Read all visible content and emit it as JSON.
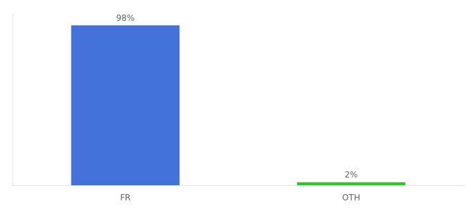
{
  "chart_data": {
    "type": "bar",
    "categories": [
      "FR",
      "OTH"
    ],
    "values": [
      98,
      2
    ],
    "value_labels": [
      "98%",
      "2%"
    ],
    "colors": [
      "#4472db",
      "#22cc22"
    ],
    "ylim": [
      0,
      105
    ],
    "data_labels": true,
    "tick_labels": "x",
    "grid": false
  }
}
